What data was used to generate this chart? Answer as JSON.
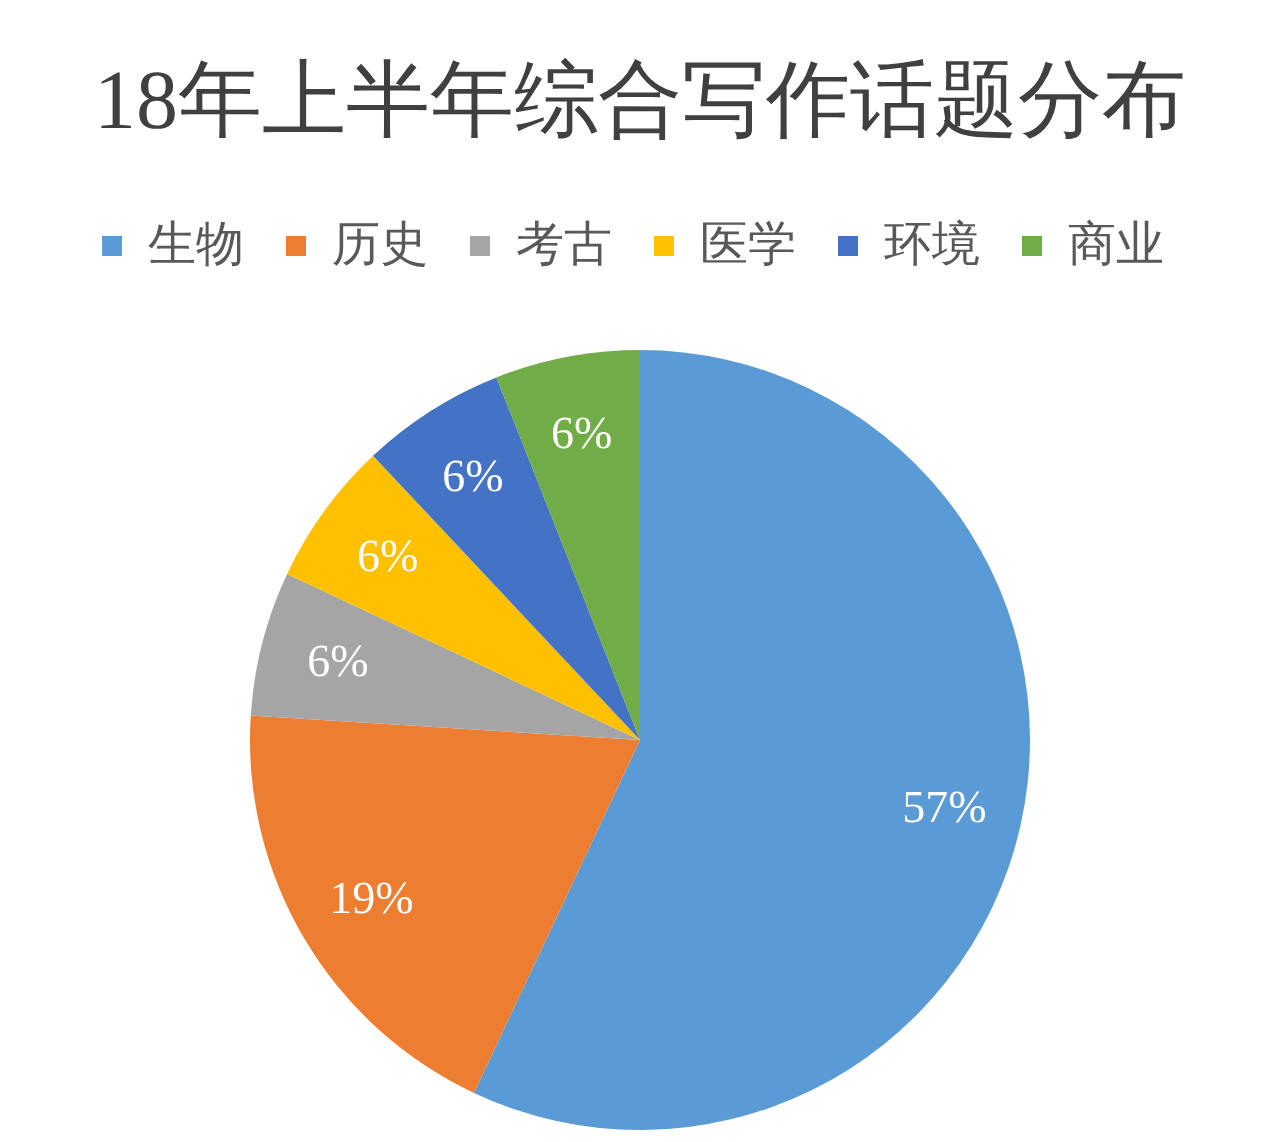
{
  "chart_data": {
    "type": "pie",
    "title": "18年上半年综合写作话题分布",
    "categories": [
      "生物",
      "历史",
      "考古",
      "医学",
      "环境",
      "商业"
    ],
    "values": [
      57,
      19,
      6,
      6,
      6,
      6
    ],
    "colors": [
      "#5b9bd5",
      "#ed7d31",
      "#a5a5a5",
      "#ffc000",
      "#4472c4",
      "#70ad47"
    ],
    "value_labels": [
      "57%",
      "19%",
      "6%",
      "6%",
      "6%",
      "6%"
    ],
    "legend": "top"
  }
}
